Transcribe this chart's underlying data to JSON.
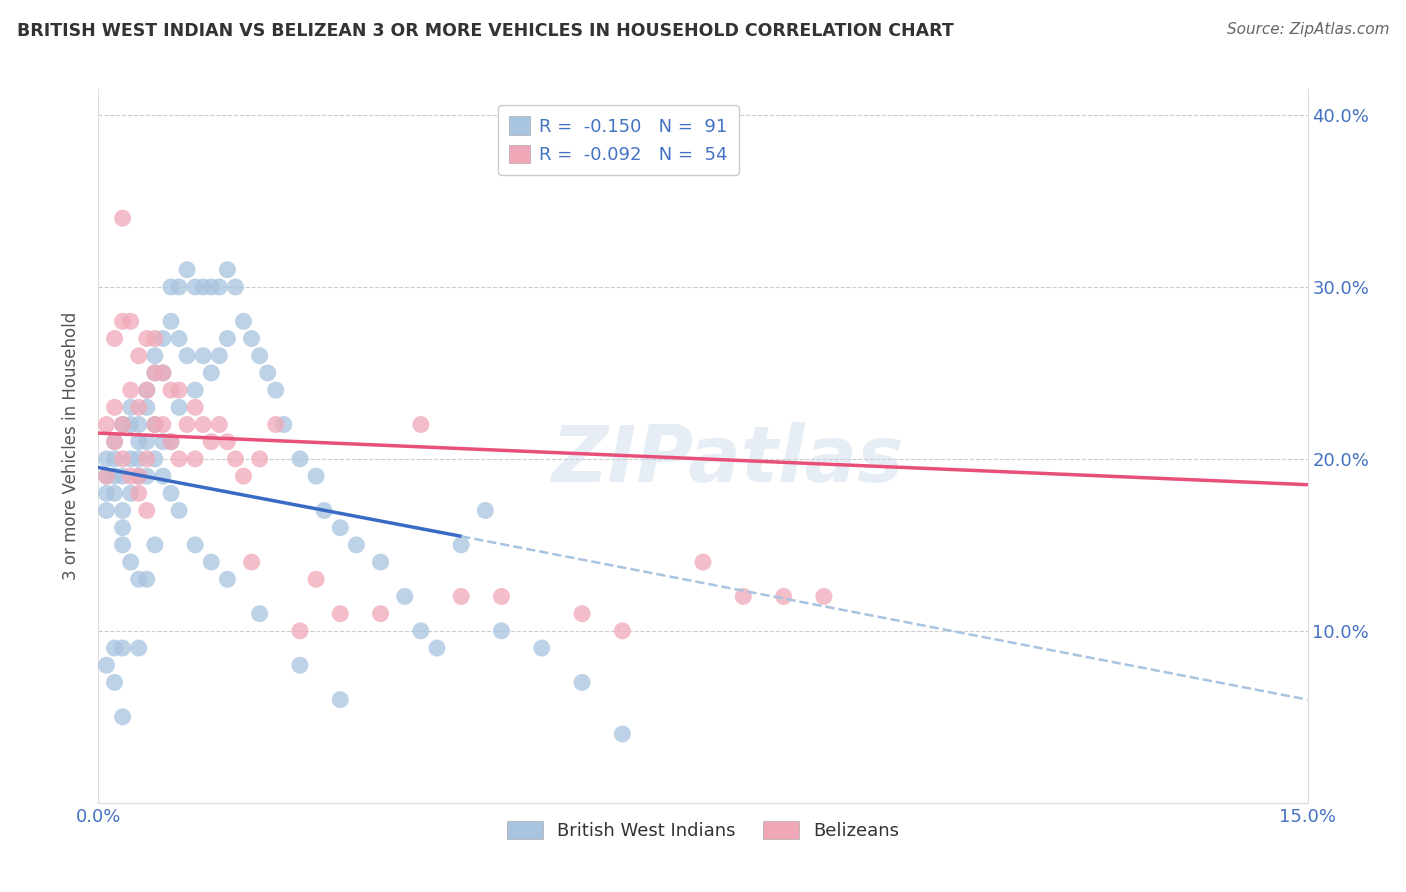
{
  "title": "BRITISH WEST INDIAN VS BELIZEAN 3 OR MORE VEHICLES IN HOUSEHOLD CORRELATION CHART",
  "source": "Source: ZipAtlas.com",
  "ylabel": "3 or more Vehicles in Household",
  "yticks": [
    0.0,
    0.1,
    0.2,
    0.3,
    0.4
  ],
  "ytick_labels": [
    "",
    "10.0%",
    "20.0%",
    "30.0%",
    "40.0%"
  ],
  "xmin": 0.0,
  "xmax": 0.15,
  "ymin": 0.0,
  "ymax": 0.415,
  "blue_R": -0.15,
  "blue_N": 91,
  "pink_R": -0.092,
  "pink_N": 54,
  "blue_color": "#a8c4e0",
  "pink_color": "#f0a8b8",
  "blue_line_color": "#3a6bc4",
  "pink_line_color": "#e8507a",
  "blue_dashed_color": "#a8c4e0",
  "legend_blue_label": "British West Indians",
  "legend_pink_label": "Belizeans",
  "watermark": "ZIPatlas",
  "blue_x": [
    0.001,
    0.001,
    0.001,
    0.001,
    0.002,
    0.002,
    0.002,
    0.002,
    0.002,
    0.003,
    0.003,
    0.003,
    0.003,
    0.003,
    0.003,
    0.004,
    0.004,
    0.004,
    0.004,
    0.005,
    0.005,
    0.005,
    0.005,
    0.005,
    0.006,
    0.006,
    0.006,
    0.006,
    0.007,
    0.007,
    0.007,
    0.007,
    0.008,
    0.008,
    0.008,
    0.009,
    0.009,
    0.009,
    0.01,
    0.01,
    0.01,
    0.011,
    0.011,
    0.012,
    0.012,
    0.013,
    0.013,
    0.014,
    0.014,
    0.015,
    0.015,
    0.016,
    0.016,
    0.017,
    0.018,
    0.019,
    0.02,
    0.021,
    0.022,
    0.023,
    0.025,
    0.027,
    0.028,
    0.03,
    0.032,
    0.035,
    0.038,
    0.04,
    0.042,
    0.045,
    0.048,
    0.05,
    0.055,
    0.06,
    0.065,
    0.001,
    0.002,
    0.003,
    0.004,
    0.005,
    0.006,
    0.007,
    0.008,
    0.009,
    0.01,
    0.012,
    0.014,
    0.016,
    0.02,
    0.025,
    0.03
  ],
  "blue_y": [
    0.19,
    0.18,
    0.17,
    0.08,
    0.2,
    0.19,
    0.18,
    0.09,
    0.07,
    0.19,
    0.17,
    0.16,
    0.15,
    0.09,
    0.05,
    0.22,
    0.2,
    0.18,
    0.14,
    0.21,
    0.2,
    0.19,
    0.13,
    0.09,
    0.24,
    0.23,
    0.19,
    0.13,
    0.26,
    0.25,
    0.22,
    0.15,
    0.27,
    0.25,
    0.21,
    0.3,
    0.28,
    0.21,
    0.3,
    0.27,
    0.23,
    0.31,
    0.26,
    0.3,
    0.24,
    0.3,
    0.26,
    0.3,
    0.25,
    0.3,
    0.26,
    0.31,
    0.27,
    0.3,
    0.28,
    0.27,
    0.26,
    0.25,
    0.24,
    0.22,
    0.2,
    0.19,
    0.17,
    0.16,
    0.15,
    0.14,
    0.12,
    0.1,
    0.09,
    0.15,
    0.17,
    0.1,
    0.09,
    0.07,
    0.04,
    0.2,
    0.21,
    0.22,
    0.23,
    0.22,
    0.21,
    0.2,
    0.19,
    0.18,
    0.17,
    0.15,
    0.14,
    0.13,
    0.11,
    0.08,
    0.06
  ],
  "pink_x": [
    0.001,
    0.001,
    0.002,
    0.002,
    0.003,
    0.003,
    0.003,
    0.004,
    0.004,
    0.005,
    0.005,
    0.005,
    0.006,
    0.006,
    0.006,
    0.007,
    0.007,
    0.007,
    0.008,
    0.008,
    0.009,
    0.009,
    0.01,
    0.01,
    0.011,
    0.012,
    0.012,
    0.013,
    0.014,
    0.015,
    0.016,
    0.017,
    0.018,
    0.019,
    0.02,
    0.022,
    0.025,
    0.027,
    0.03,
    0.035,
    0.04,
    0.045,
    0.05,
    0.06,
    0.065,
    0.075,
    0.08,
    0.085,
    0.09,
    0.002,
    0.003,
    0.004,
    0.005,
    0.006
  ],
  "pink_y": [
    0.22,
    0.19,
    0.27,
    0.23,
    0.34,
    0.28,
    0.22,
    0.28,
    0.24,
    0.26,
    0.23,
    0.19,
    0.27,
    0.24,
    0.2,
    0.27,
    0.25,
    0.22,
    0.25,
    0.22,
    0.24,
    0.21,
    0.24,
    0.2,
    0.22,
    0.23,
    0.2,
    0.22,
    0.21,
    0.22,
    0.21,
    0.2,
    0.19,
    0.14,
    0.2,
    0.22,
    0.1,
    0.13,
    0.11,
    0.11,
    0.22,
    0.12,
    0.12,
    0.11,
    0.1,
    0.14,
    0.12,
    0.12,
    0.12,
    0.21,
    0.2,
    0.19,
    0.18,
    0.17
  ],
  "blue_line_x0": 0.0,
  "blue_line_y0": 0.195,
  "blue_line_x1": 0.045,
  "blue_line_y1": 0.155,
  "blue_line_xend": 0.15,
  "blue_line_yend": 0.06,
  "pink_line_x0": 0.0,
  "pink_line_y0": 0.215,
  "pink_line_x1": 0.15,
  "pink_line_y1": 0.185
}
